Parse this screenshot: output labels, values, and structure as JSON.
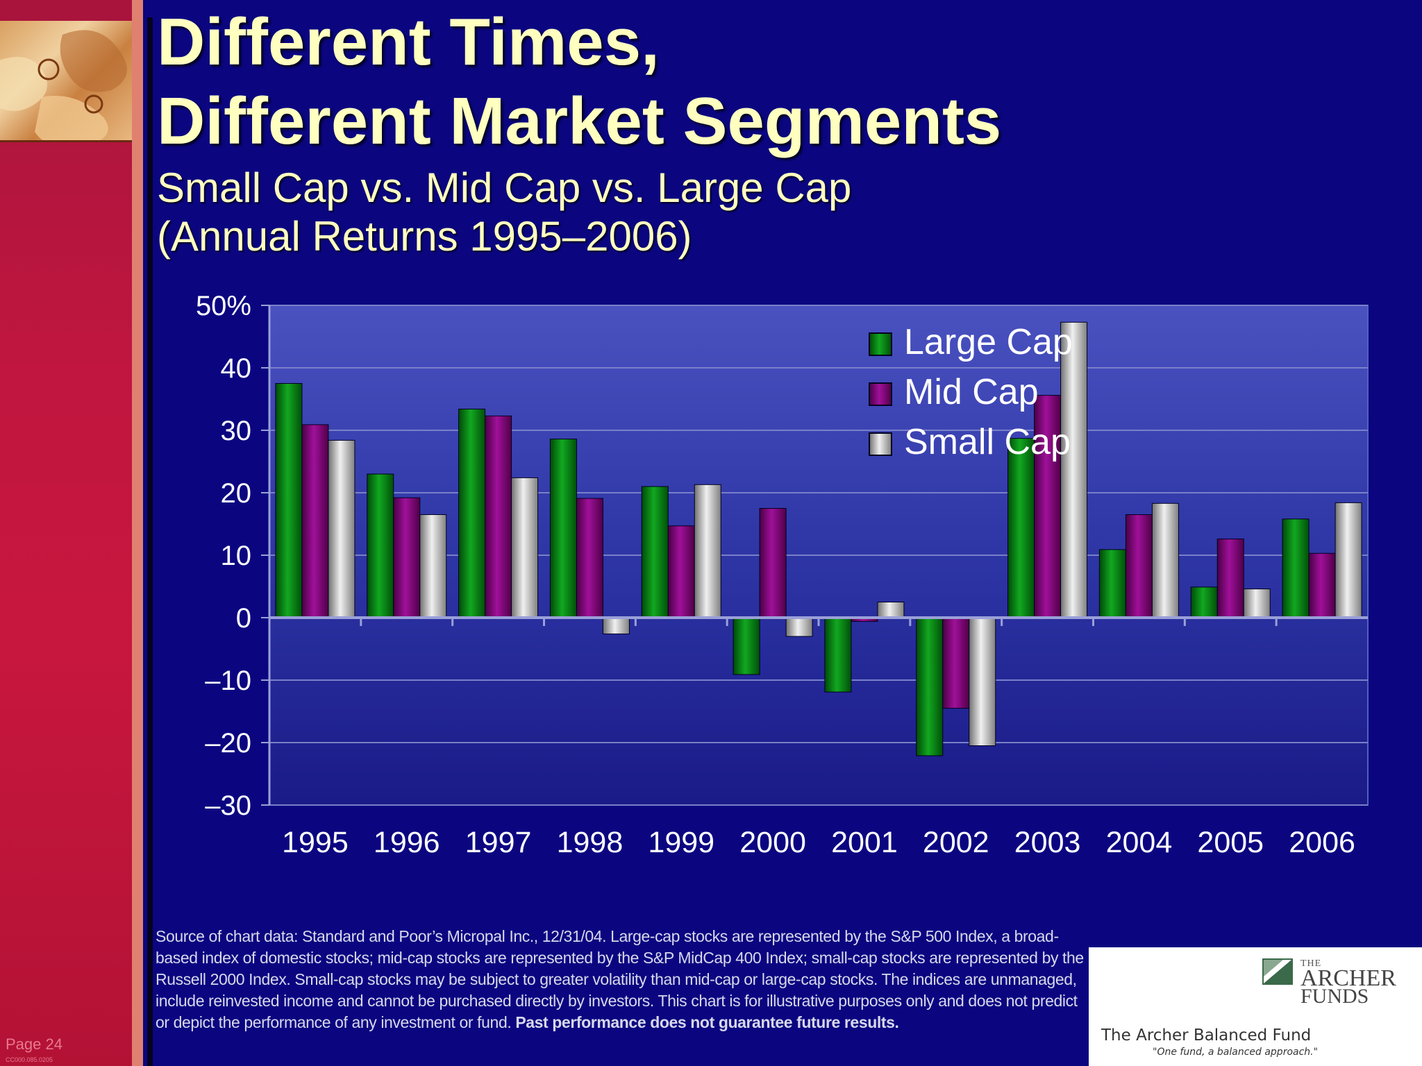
{
  "page": {
    "number": "Page 24",
    "doc_code": "CC000.085.0205"
  },
  "title": {
    "line1": "Different Times,",
    "line2": "Different Market Segments"
  },
  "subtitle": {
    "line1": "Small Cap vs. Mid Cap vs. Large Cap",
    "line2": "(Annual Returns 1995–2006)"
  },
  "colors": {
    "background": "#0b0680",
    "title": "#ffffc0",
    "large_cap": "#0a7a10",
    "mid_cap": "#7a0870",
    "small_cap": "#b8b8b8"
  },
  "chart_data": {
    "type": "bar",
    "categories": [
      "1995",
      "1996",
      "1997",
      "1998",
      "1999",
      "2000",
      "2001",
      "2002",
      "2003",
      "2004",
      "2005",
      "2006"
    ],
    "series": [
      {
        "name": "Large Cap",
        "color": "#0a7a10",
        "values": [
          37.5,
          23.0,
          33.4,
          28.6,
          21.0,
          -9.1,
          -11.9,
          -22.1,
          28.7,
          10.9,
          4.9,
          15.8
        ]
      },
      {
        "name": "Mid Cap",
        "color": "#7a0870",
        "values": [
          30.9,
          19.2,
          32.3,
          19.1,
          14.7,
          17.5,
          -0.6,
          -14.5,
          35.6,
          16.5,
          12.6,
          10.3
        ]
      },
      {
        "name": "Small Cap",
        "color": "#b8b8b8",
        "values": [
          28.4,
          16.5,
          22.4,
          -2.6,
          21.3,
          -3.0,
          2.5,
          -20.5,
          47.3,
          18.3,
          4.6,
          18.4
        ]
      }
    ],
    "y_ticks": [
      "50%",
      "40",
      "30",
      "20",
      "10",
      "0",
      "–10",
      "–20",
      "–30"
    ],
    "ylim": [
      -30,
      50
    ],
    "legend_position": "top-right",
    "grid": true
  },
  "footnote": {
    "text": "Source of chart data: Standard and Poor’s Micropal Inc., 12/31/04. Large-cap stocks are represented by the S&P 500 Index, a broad-based index of domestic stocks; mid-cap stocks are represented by the S&P MidCap 400 Index; small-cap stocks are represented by the Russell 2000 Index. Small-cap stocks may be subject to greater volatility than mid-cap or large-cap stocks. The indices are unmanaged, include reinvested income and cannot be purchased directly by investors. This chart is for illustrative purposes only and does not predict or depict the performance of any investment or fund. ",
    "bold_text": "Past performance does not guarantee future results."
  },
  "logo": {
    "the": "THE",
    "archer": "ARCHER",
    "funds": "FUNDS",
    "fund_name": "The Archer Balanced Fund",
    "tagline": "\"One fund, a balanced approach.\""
  }
}
